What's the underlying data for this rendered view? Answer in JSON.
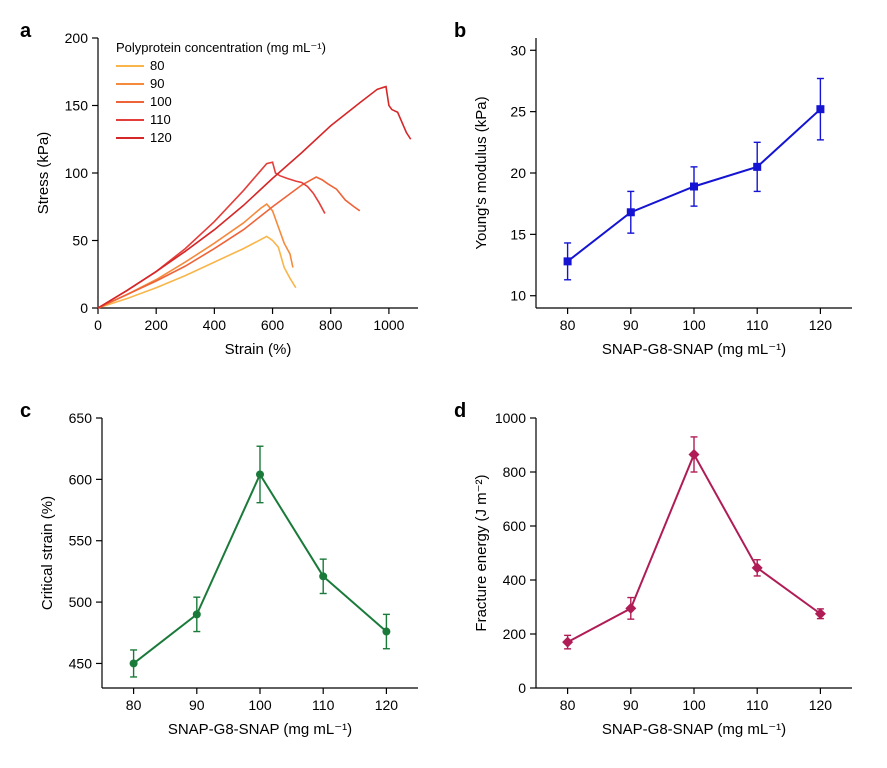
{
  "layout": {
    "panel_labels": [
      "a",
      "b",
      "c",
      "d"
    ],
    "label_fontsize": 20,
    "label_fontweight": "bold",
    "background_color": "#ffffff"
  },
  "panel_a": {
    "type": "line",
    "xlabel": "Strain (%)",
    "ylabel": "Stress (kPa)",
    "label_fontsize": 15,
    "tick_fontsize": 14,
    "legend_title": "Polyprotein concentration (mg mL⁻¹)",
    "xlim": [
      0,
      1100
    ],
    "ylim": [
      0,
      200
    ],
    "xticks": [
      0,
      200,
      400,
      600,
      800,
      1000
    ],
    "yticks": [
      0,
      50,
      100,
      150,
      200
    ],
    "line_width": 1.6,
    "series": [
      {
        "label": "80",
        "color": "#f9b54a",
        "points": [
          [
            0,
            0
          ],
          [
            100,
            7
          ],
          [
            200,
            15
          ],
          [
            300,
            24
          ],
          [
            400,
            34
          ],
          [
            500,
            44
          ],
          [
            580,
            53
          ],
          [
            600,
            50
          ],
          [
            620,
            45
          ],
          [
            640,
            30
          ],
          [
            660,
            22
          ],
          [
            680,
            15
          ]
        ]
      },
      {
        "label": "90",
        "color": "#f58a3c",
        "points": [
          [
            0,
            0
          ],
          [
            100,
            10
          ],
          [
            200,
            21
          ],
          [
            300,
            34
          ],
          [
            400,
            48
          ],
          [
            500,
            63
          ],
          [
            560,
            74
          ],
          [
            580,
            77
          ],
          [
            600,
            72
          ],
          [
            620,
            60
          ],
          [
            640,
            48
          ],
          [
            660,
            40
          ],
          [
            670,
            30
          ]
        ]
      },
      {
        "label": "100",
        "color": "#ef6338",
        "points": [
          [
            0,
            0
          ],
          [
            100,
            10
          ],
          [
            200,
            20
          ],
          [
            300,
            31
          ],
          [
            400,
            44
          ],
          [
            500,
            58
          ],
          [
            600,
            75
          ],
          [
            700,
            91
          ],
          [
            750,
            97
          ],
          [
            770,
            95
          ],
          [
            790,
            92
          ],
          [
            820,
            88
          ],
          [
            850,
            80
          ],
          [
            880,
            75
          ],
          [
            900,
            72
          ]
        ]
      },
      {
        "label": "110",
        "color": "#e33e3a",
        "points": [
          [
            0,
            0
          ],
          [
            100,
            13
          ],
          [
            200,
            27
          ],
          [
            300,
            44
          ],
          [
            400,
            64
          ],
          [
            500,
            87
          ],
          [
            560,
            102
          ],
          [
            580,
            107
          ],
          [
            600,
            108
          ],
          [
            610,
            100
          ],
          [
            625,
            98
          ],
          [
            650,
            96
          ],
          [
            680,
            94
          ],
          [
            700,
            93
          ],
          [
            720,
            90
          ],
          [
            740,
            85
          ],
          [
            760,
            78
          ],
          [
            780,
            70
          ]
        ]
      },
      {
        "label": "120",
        "color": "#d62728",
        "points": [
          [
            0,
            0
          ],
          [
            100,
            13
          ],
          [
            200,
            27
          ],
          [
            300,
            42
          ],
          [
            400,
            58
          ],
          [
            500,
            76
          ],
          [
            600,
            96
          ],
          [
            700,
            115
          ],
          [
            800,
            135
          ],
          [
            900,
            152
          ],
          [
            960,
            162
          ],
          [
            990,
            164
          ],
          [
            1000,
            150
          ],
          [
            1010,
            147
          ],
          [
            1030,
            145
          ],
          [
            1060,
            130
          ],
          [
            1075,
            125
          ]
        ]
      }
    ]
  },
  "panel_b": {
    "type": "line-errorbar",
    "xlabel": "SNAP-G8-SNAP (mg mL⁻¹)",
    "ylabel": "Young's modulus (kPa)",
    "label_fontsize": 15,
    "tick_fontsize": 14,
    "xlim": [
      75,
      125
    ],
    "ylim": [
      9,
      31
    ],
    "xticks": [
      80,
      90,
      100,
      110,
      120
    ],
    "yticks": [
      10,
      15,
      20,
      25,
      30
    ],
    "color": "#1414d2",
    "marker": "square",
    "marker_size": 8,
    "line_width": 2,
    "cap_width": 7,
    "x": [
      80,
      90,
      100,
      110,
      120
    ],
    "y": [
      12.8,
      16.8,
      18.9,
      20.5,
      25.2
    ],
    "err": [
      1.5,
      1.7,
      1.6,
      2.0,
      2.5
    ]
  },
  "panel_c": {
    "type": "line-errorbar",
    "xlabel": "SNAP-G8-SNAP (mg mL⁻¹)",
    "ylabel": "Critical strain (%)",
    "label_fontsize": 15,
    "tick_fontsize": 14,
    "xlim": [
      75,
      125
    ],
    "ylim": [
      430,
      650
    ],
    "xticks": [
      80,
      90,
      100,
      110,
      120
    ],
    "yticks": [
      450,
      500,
      550,
      600,
      650
    ],
    "color": "#1a7a3a",
    "marker": "circle",
    "marker_size": 8,
    "line_width": 2,
    "cap_width": 7,
    "x": [
      80,
      90,
      100,
      110,
      120
    ],
    "y": [
      450,
      490,
      604,
      521,
      476
    ],
    "err": [
      11,
      14,
      23,
      14,
      14
    ]
  },
  "panel_d": {
    "type": "line-errorbar",
    "xlabel": "SNAP-G8-SNAP (mg mL⁻¹)",
    "ylabel": "Fracture energy (J m⁻²)",
    "label_fontsize": 15,
    "tick_fontsize": 14,
    "xlim": [
      75,
      125
    ],
    "ylim": [
      0,
      1000
    ],
    "xticks": [
      80,
      90,
      100,
      110,
      120
    ],
    "yticks": [
      0,
      200,
      400,
      600,
      800,
      1000
    ],
    "color": "#b01c56",
    "marker": "diamond",
    "marker_size": 9,
    "line_width": 2,
    "cap_width": 7,
    "x": [
      80,
      90,
      100,
      110,
      120
    ],
    "y": [
      170,
      295,
      865,
      445,
      275
    ],
    "err": [
      25,
      40,
      65,
      30,
      18
    ]
  }
}
